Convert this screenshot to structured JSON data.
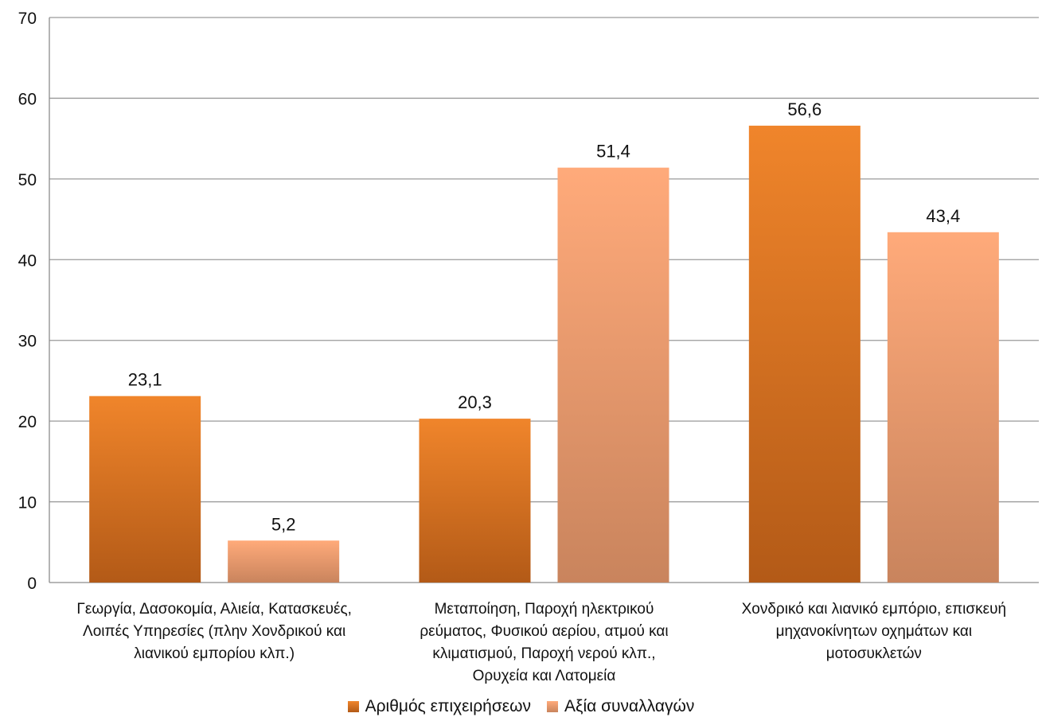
{
  "chart_data": {
    "type": "bar",
    "title": "",
    "xlabel": "",
    "ylabel": "",
    "ylim": [
      0,
      70
    ],
    "yticks": [
      0,
      10,
      20,
      30,
      40,
      50,
      60,
      70
    ],
    "grid": true,
    "legend_position": "bottom",
    "categories": [
      "Γεωργία, Δασοκομία, Αλιεία, Κατασκευές,\nΛοιπές Υπηρεσίες (πλην Χονδρικού και\nλιανικού εμπορίου κλπ.)",
      "Μεταποίηση, Παροχή ηλεκτρικού\nρεύματος, Φυσικού αερίου, ατμού και\nκλιματισμού, Παροχή νερού κλπ.,\nΟρυχεία και Λατομεία",
      "Χονδρικό και λιανικό εμπόριο, επισκευή\nμηχανοκίνητων οχημάτων και\nμοτοσυκλετών"
    ],
    "series": [
      {
        "name": "Αριθμός επιχειρήσεων",
        "values": [
          23.1,
          20.3,
          56.6
        ],
        "labels": [
          "23,1",
          "20,3",
          "56,6"
        ],
        "color_top": "#F0852B",
        "color_bottom": "#B35A17"
      },
      {
        "name": "Αξία συναλλαγών",
        "values": [
          5.2,
          51.4,
          43.4
        ],
        "labels": [
          "5,2",
          "51,4",
          "43,4"
        ],
        "color_top": "#FFAA7A",
        "color_bottom": "#C9845D"
      }
    ]
  }
}
